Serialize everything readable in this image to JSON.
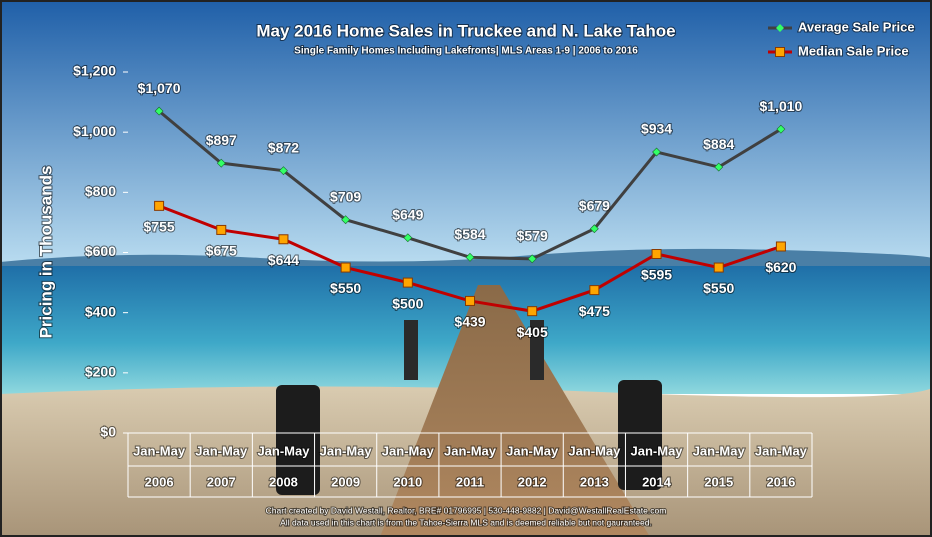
{
  "chart_data": {
    "type": "line",
    "title": "May 2016 Home Sales in Truckee and N. Lake Tahoe",
    "subtitle": "Single Family Homes Including Lakefronts| MLS Areas 1-9 | 2006 to 2016",
    "y_label": "Pricing in Thousands",
    "categories": [
      [
        "Jan-May",
        "2006"
      ],
      [
        "Jan-May",
        "2007"
      ],
      [
        "Jan-May",
        "2008"
      ],
      [
        "Jan-May",
        "2009"
      ],
      [
        "Jan-May",
        "2010"
      ],
      [
        "Jan-May",
        "2011"
      ],
      [
        "Jan-May",
        "2012"
      ],
      [
        "Jan-May",
        "2013"
      ],
      [
        "Jan-May",
        "2014"
      ],
      [
        "Jan-May",
        "2015"
      ],
      [
        "Jan-May",
        "2016"
      ]
    ],
    "series": [
      {
        "name": "Average Sale Price",
        "color": "#404040",
        "marker_color": "#33ff66",
        "marker": "diamond",
        "values": [
          1070,
          897,
          872,
          709,
          649,
          584,
          579,
          679,
          934,
          884,
          1010
        ],
        "value_labels": [
          "$1,070",
          "$897",
          "$872",
          "$709",
          "$649",
          "$584",
          "$579",
          "$679",
          "$934",
          "$884",
          "$1,010"
        ]
      },
      {
        "name": "Median Sale Price",
        "color": "#c00000",
        "marker_color": "#ffa500",
        "marker": "square",
        "values": [
          755,
          675,
          644,
          550,
          500,
          439,
          405,
          475,
          595,
          550,
          620
        ],
        "value_labels": [
          "$755",
          "$675",
          "$644",
          "$550",
          "$500",
          "$439",
          "$405",
          "$475",
          "$595",
          "$550",
          "$620"
        ]
      }
    ],
    "ylim": [
      0,
      1200
    ],
    "yticks": [
      {
        "value": 0,
        "label": "$0"
      },
      {
        "value": 200,
        "label": "$200"
      },
      {
        "value": 400,
        "label": "$400"
      },
      {
        "value": 600,
        "label": "$600"
      },
      {
        "value": 800,
        "label": "$800"
      },
      {
        "value": 1000,
        "label": "$1,000"
      },
      {
        "value": 1200,
        "label": "$1,200"
      }
    ],
    "legend": "upper right",
    "footer": [
      "Chart created by David Westall, Realtor, BRE# 01796995 | 530-448-9882 | David@WestallRealEstate.com",
      "All data used in this chart is from the Tahoe-Sierra MLS and is deemed reliable but  not gauranteed."
    ]
  }
}
